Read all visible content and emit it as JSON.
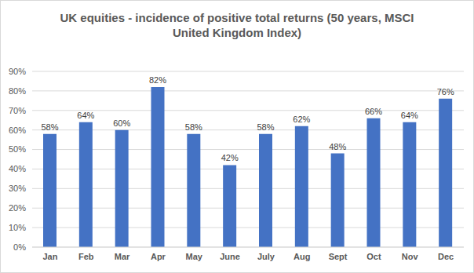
{
  "chart_data": {
    "type": "bar",
    "title": "UK equities - incidence of positive total returns (50 years, MSCI United Kingdom Index)",
    "categories": [
      "Jan",
      "Feb",
      "Mar",
      "Apr",
      "May",
      "June",
      "July",
      "Aug",
      "Sept",
      "Oct",
      "Nov",
      "Dec"
    ],
    "values": [
      58,
      64,
      60,
      82,
      58,
      42,
      58,
      62,
      48,
      66,
      64,
      76
    ],
    "value_labels": [
      "58%",
      "64%",
      "60%",
      "82%",
      "58%",
      "42%",
      "58%",
      "62%",
      "48%",
      "66%",
      "64%",
      "76%"
    ],
    "color": "#4472c4",
    "ylim": [
      0,
      90
    ],
    "yticks": [
      {
        "value": 0,
        "label": "0%"
      },
      {
        "value": 10,
        "label": "10%"
      },
      {
        "value": 20,
        "label": "20%"
      },
      {
        "value": 30,
        "label": "30%"
      },
      {
        "value": 40,
        "label": "40%"
      },
      {
        "value": 50,
        "label": "50%"
      },
      {
        "value": 60,
        "label": "60%"
      },
      {
        "value": 70,
        "label": "70%"
      },
      {
        "value": 80,
        "label": "80%"
      },
      {
        "value": 90,
        "label": "90%"
      }
    ],
    "grid": true,
    "data_labels": true
  }
}
